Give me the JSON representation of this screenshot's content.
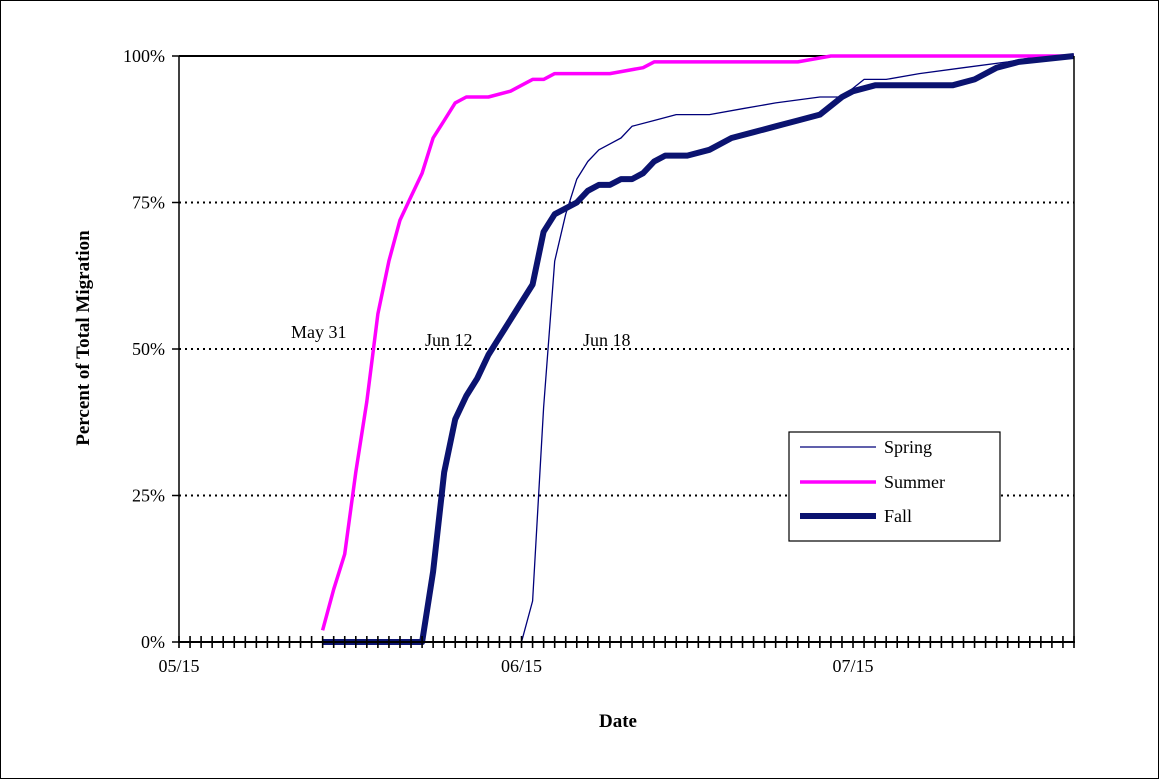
{
  "chart_data": {
    "type": "line",
    "xlabel": "Date",
    "ylabel": "Percent of Total Migration",
    "x_ticks": [
      "05/15",
      "06/15",
      "07/15"
    ],
    "y_ticks": [
      "0%",
      "25%",
      "50%",
      "75%",
      "100%"
    ],
    "xlim": [
      "05/15",
      "08/04"
    ],
    "ylim": [
      0,
      100
    ],
    "grid": "horizontal dotted at 25%, 50%, 75%; solid at 100%",
    "legend_position": "lower-right",
    "annotations": [
      "May 31",
      "Jun 12",
      "Jun 18"
    ],
    "series": [
      {
        "name": "Spring",
        "color": "#00007a",
        "width": 1.3,
        "points": [
          [
            "05/28",
            0
          ],
          [
            "06/14",
            0
          ],
          [
            "06/15",
            0
          ],
          [
            "06/16",
            7
          ],
          [
            "06/17",
            40
          ],
          [
            "06/18",
            65
          ],
          [
            "06/19",
            73
          ],
          [
            "06/20",
            79
          ],
          [
            "06/21",
            82
          ],
          [
            "06/22",
            84
          ],
          [
            "06/23",
            85
          ],
          [
            "06/24",
            86
          ],
          [
            "06/25",
            88
          ],
          [
            "06/27",
            89
          ],
          [
            "06/29",
            90
          ],
          [
            "07/02",
            90
          ],
          [
            "07/05",
            91
          ],
          [
            "07/08",
            92
          ],
          [
            "07/12",
            93
          ],
          [
            "07/14",
            93
          ],
          [
            "07/16",
            96
          ],
          [
            "07/18",
            96
          ],
          [
            "07/21",
            97
          ],
          [
            "07/25",
            98
          ],
          [
            "07/29",
            99
          ],
          [
            "08/01",
            100
          ],
          [
            "08/04",
            100
          ]
        ]
      },
      {
        "name": "Summer",
        "color": "#ff00ff",
        "width": 3.5,
        "points": [
          [
            "05/28",
            2
          ],
          [
            "05/29",
            9
          ],
          [
            "05/30",
            15
          ],
          [
            "05/31",
            29
          ],
          [
            "06/01",
            41
          ],
          [
            "06/02",
            56
          ],
          [
            "06/03",
            65
          ],
          [
            "06/04",
            72
          ],
          [
            "06/05",
            76
          ],
          [
            "06/06",
            80
          ],
          [
            "06/07",
            86
          ],
          [
            "06/08",
            89
          ],
          [
            "06/09",
            92
          ],
          [
            "06/10",
            93
          ],
          [
            "06/12",
            93
          ],
          [
            "06/14",
            94
          ],
          [
            "06/15",
            95
          ],
          [
            "06/16",
            96
          ],
          [
            "06/17",
            96
          ],
          [
            "06/18",
            97
          ],
          [
            "06/20",
            97
          ],
          [
            "06/23",
            97
          ],
          [
            "06/26",
            98
          ],
          [
            "06/27",
            99
          ],
          [
            "06/29",
            99
          ],
          [
            "07/10",
            99
          ],
          [
            "07/13",
            100
          ],
          [
            "08/04",
            100
          ]
        ]
      },
      {
        "name": "Fall",
        "color": "#0b1370",
        "width": 6,
        "points": [
          [
            "05/28",
            0
          ],
          [
            "06/05",
            0
          ],
          [
            "06/06",
            0
          ],
          [
            "06/07",
            12
          ],
          [
            "06/08",
            29
          ],
          [
            "06/09",
            38
          ],
          [
            "06/10",
            42
          ],
          [
            "06/11",
            45
          ],
          [
            "06/12",
            49
          ],
          [
            "06/13",
            52
          ],
          [
            "06/14",
            55
          ],
          [
            "06/15",
            58
          ],
          [
            "06/16",
            61
          ],
          [
            "06/17",
            70
          ],
          [
            "06/18",
            73
          ],
          [
            "06/19",
            74
          ],
          [
            "06/20",
            75
          ],
          [
            "06/21",
            77
          ],
          [
            "06/22",
            78
          ],
          [
            "06/23",
            78
          ],
          [
            "06/24",
            79
          ],
          [
            "06/25",
            79
          ],
          [
            "06/26",
            80
          ],
          [
            "06/27",
            82
          ],
          [
            "06/28",
            83
          ],
          [
            "06/30",
            83
          ],
          [
            "07/02",
            84
          ],
          [
            "07/04",
            86
          ],
          [
            "07/06",
            87
          ],
          [
            "07/08",
            88
          ],
          [
            "07/10",
            89
          ],
          [
            "07/12",
            90
          ],
          [
            "07/14",
            93
          ],
          [
            "07/15",
            94
          ],
          [
            "07/17",
            95
          ],
          [
            "07/20",
            95
          ],
          [
            "07/24",
            95
          ],
          [
            "07/26",
            96
          ],
          [
            "07/28",
            98
          ],
          [
            "07/30",
            99
          ],
          [
            "08/04",
            100
          ]
        ]
      }
    ]
  }
}
